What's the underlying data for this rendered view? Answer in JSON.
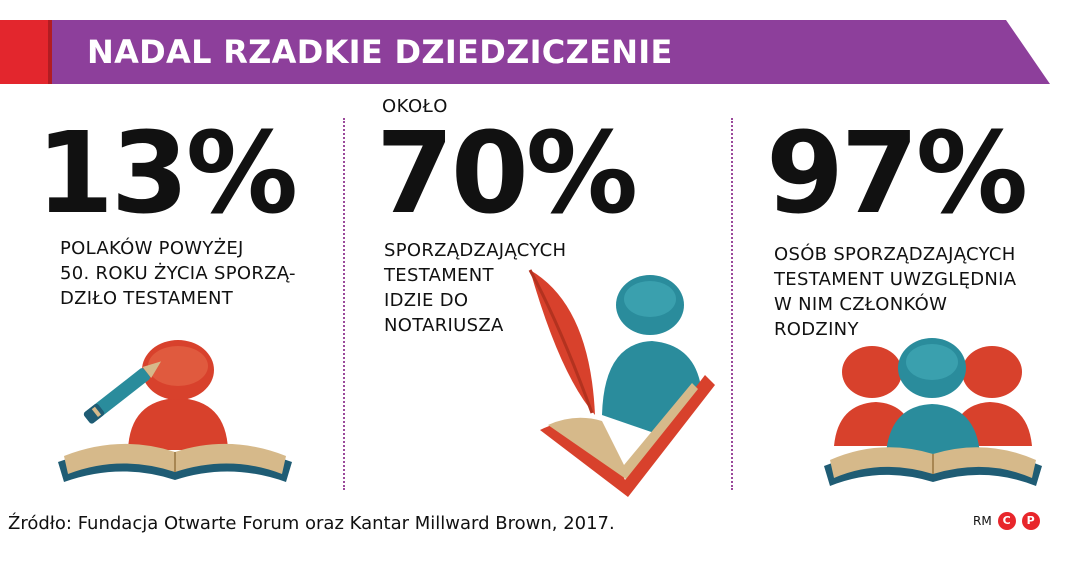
{
  "header": {
    "title": "NADAL RZADKIE DZIEDZICZENIE",
    "banner_color": "#8d3f9b",
    "accent_color": "#e3262d"
  },
  "stats": [
    {
      "value": "13%",
      "prefix": "",
      "description": [
        "POLAKÓW POWYŻEJ",
        "50. ROKU ŻYCIA SPORZĄ-",
        "DZIŁO TESTAMENT"
      ],
      "icon": "person-writing-book-icon"
    },
    {
      "value": "70%",
      "prefix": "OKOŁO",
      "description": [
        "SPORZĄDZAJĄCYCH",
        "TESTAMENT",
        "IDZIE DO",
        "NOTARIUSZA"
      ],
      "icon": "quill-person-checkmark-icon"
    },
    {
      "value": "97%",
      "prefix": "",
      "description": [
        "OSÓB SPORZĄDZAJĄCYCH",
        "TESTAMENT UWZGLĘDNIA",
        "W NIM CZŁONKÓW",
        "RODZINY"
      ],
      "icon": "family-group-book-icon"
    }
  ],
  "footer": {
    "source": "Źródło: Fundacja Otwarte Forum oraz Kantar Millward Brown, 2017.",
    "initials": "RM",
    "mark_c": "C",
    "mark_p": "P"
  },
  "colors": {
    "red": "#d8412c",
    "dark_red": "#b3321f",
    "teal": "#2a8c9c",
    "navy": "#1f5c74",
    "tan": "#d6b98a",
    "divider": "#9b4a9b"
  }
}
